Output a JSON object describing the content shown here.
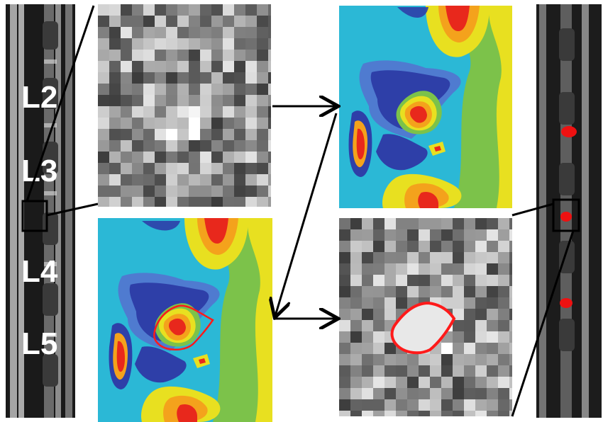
{
  "figure": {
    "vertebra_labels": [
      "L2",
      "L3",
      "L4",
      "L5"
    ]
  },
  "colors": {
    "contour_dark_blue": "#2e3fa8",
    "contour_blue": "#4f7bd0",
    "contour_cyan": "#22b4e6",
    "contour_teal": "#3cc0b8",
    "contour_green": "#7cc24a",
    "contour_yellow": "#e8e020",
    "contour_orange": "#f4a21c",
    "contour_red": "#e8281c",
    "lesion_outline": "#ff1a1a",
    "arrow": "#000000"
  }
}
